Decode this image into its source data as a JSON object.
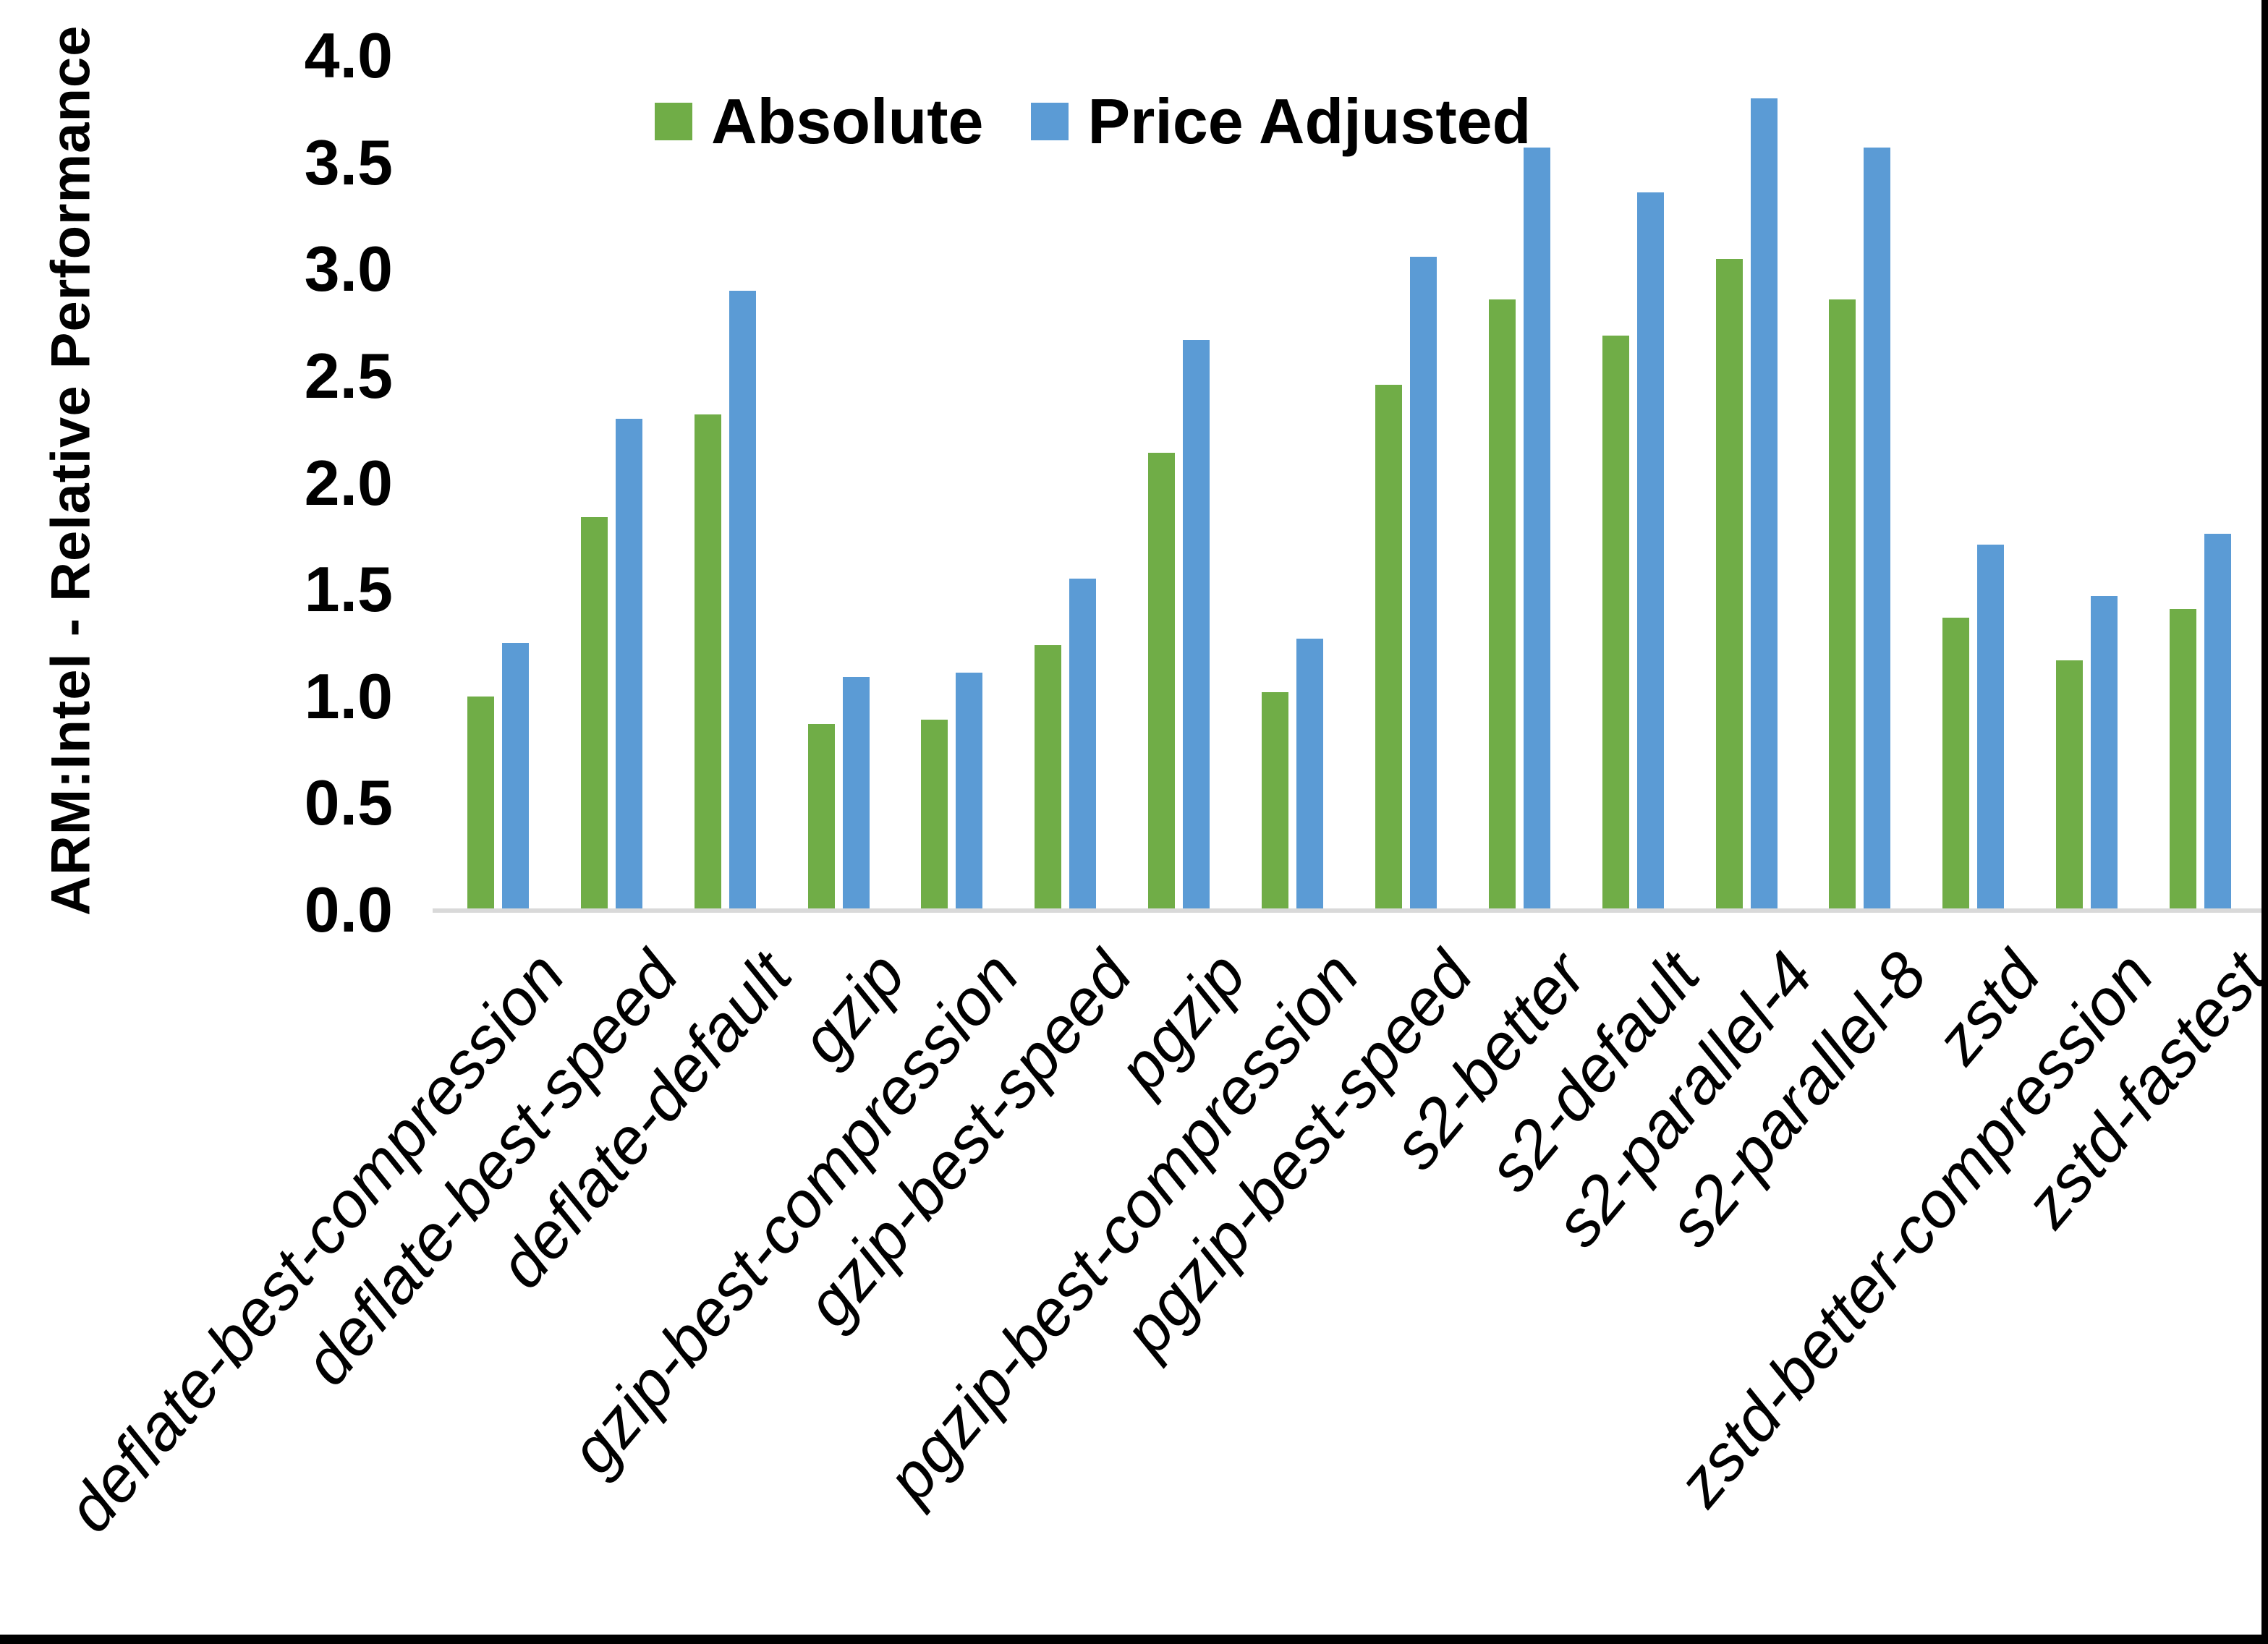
{
  "chart_data": {
    "type": "bar",
    "title": "",
    "categories": [
      "deflate-best-compression",
      "deflate-best-speed",
      "deflate-default",
      "gzip",
      "gzip-best-compression",
      "gzip-best-speed",
      "pgzip",
      "pgzip-best-compression",
      "pgzip-best-speed",
      "s2-better",
      "s2-default",
      "s2-parallel-4",
      "s2-parallel-8",
      "zstd",
      "zstd-better-compression",
      "zstd-fastest"
    ],
    "series": [
      {
        "name": "Absolute",
        "color": "#70AD47",
        "values": [
          1.0,
          1.84,
          2.32,
          0.87,
          0.89,
          1.24,
          2.14,
          1.02,
          2.46,
          2.86,
          2.69,
          3.05,
          2.86,
          1.37,
          1.17,
          1.41
        ]
      },
      {
        "name": "Price Adjusted",
        "color": "#5B9BD5",
        "values": [
          1.25,
          2.3,
          2.9,
          1.09,
          1.11,
          1.55,
          2.67,
          1.27,
          3.06,
          3.57,
          3.36,
          3.8,
          3.57,
          1.71,
          1.47,
          1.76
        ]
      }
    ],
    "xlabel": "",
    "ylabel": "ARM:Intel - Relative Performance",
    "ylim": [
      0,
      4
    ],
    "yticks": [
      4.0,
      3.5,
      3.0,
      2.5,
      2.0,
      1.5,
      1.0,
      0.5,
      0.0
    ],
    "ytick_format_decimals": 1,
    "grid": false,
    "legend_position": "top-center",
    "axis_line_color": "#d9d9d9",
    "text_color": "#000000"
  }
}
